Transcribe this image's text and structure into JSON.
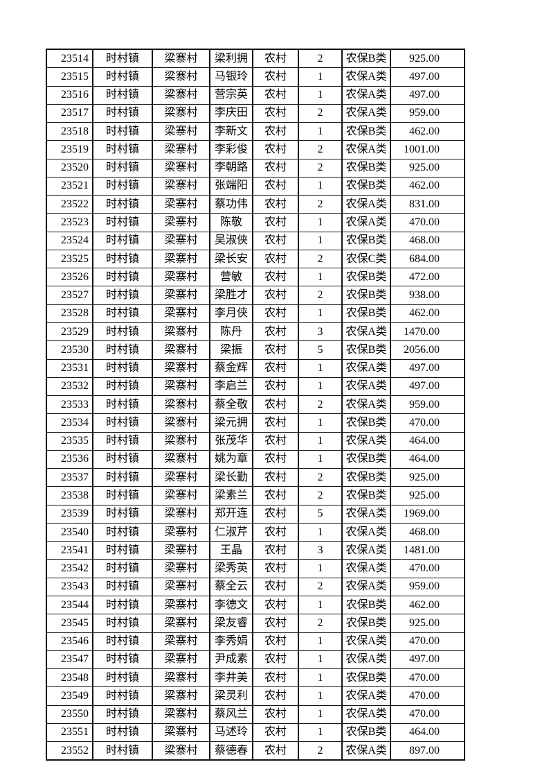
{
  "table": {
    "column_keys": [
      "id",
      "town",
      "village",
      "name",
      "residence",
      "count",
      "category",
      "amount"
    ],
    "rows": [
      [
        "23514",
        "时村镇",
        "梁寨村",
        "梁利拥",
        "农村",
        "2",
        "农保B类",
        "925.00"
      ],
      [
        "23515",
        "时村镇",
        "梁寨村",
        "马银玲",
        "农村",
        "1",
        "农保A类",
        "497.00"
      ],
      [
        "23516",
        "时村镇",
        "梁寨村",
        "营宗英",
        "农村",
        "1",
        "农保A类",
        "497.00"
      ],
      [
        "23517",
        "时村镇",
        "梁寨村",
        "李庆田",
        "农村",
        "2",
        "农保A类",
        "959.00"
      ],
      [
        "23518",
        "时村镇",
        "梁寨村",
        "李新文",
        "农村",
        "1",
        "农保B类",
        "462.00"
      ],
      [
        "23519",
        "时村镇",
        "梁寨村",
        "李彩俊",
        "农村",
        "2",
        "农保A类",
        "1001.00"
      ],
      [
        "23520",
        "时村镇",
        "梁寨村",
        "李朝路",
        "农村",
        "2",
        "农保B类",
        "925.00"
      ],
      [
        "23521",
        "时村镇",
        "梁寨村",
        "张端阳",
        "农村",
        "1",
        "农保B类",
        "462.00"
      ],
      [
        "23522",
        "时村镇",
        "梁寨村",
        "蔡功伟",
        "农村",
        "2",
        "农保A类",
        "831.00"
      ],
      [
        "23523",
        "时村镇",
        "梁寨村",
        "陈敬",
        "农村",
        "1",
        "农保A类",
        "470.00"
      ],
      [
        "23524",
        "时村镇",
        "梁寨村",
        "吴淑侠",
        "农村",
        "1",
        "农保B类",
        "468.00"
      ],
      [
        "23525",
        "时村镇",
        "梁寨村",
        "梁长安",
        "农村",
        "2",
        "农保C类",
        "684.00"
      ],
      [
        "23526",
        "时村镇",
        "梁寨村",
        "营敏",
        "农村",
        "1",
        "农保B类",
        "472.00"
      ],
      [
        "23527",
        "时村镇",
        "梁寨村",
        "梁胜才",
        "农村",
        "2",
        "农保B类",
        "938.00"
      ],
      [
        "23528",
        "时村镇",
        "梁寨村",
        "李月侠",
        "农村",
        "1",
        "农保B类",
        "462.00"
      ],
      [
        "23529",
        "时村镇",
        "梁寨村",
        "陈丹",
        "农村",
        "3",
        "农保A类",
        "1470.00"
      ],
      [
        "23530",
        "时村镇",
        "梁寨村",
        "梁振",
        "农村",
        "5",
        "农保B类",
        "2056.00"
      ],
      [
        "23531",
        "时村镇",
        "梁寨村",
        "蔡金辉",
        "农村",
        "1",
        "农保A类",
        "497.00"
      ],
      [
        "23532",
        "时村镇",
        "梁寨村",
        "李启兰",
        "农村",
        "1",
        "农保A类",
        "497.00"
      ],
      [
        "23533",
        "时村镇",
        "梁寨村",
        "蔡全敬",
        "农村",
        "2",
        "农保A类",
        "959.00"
      ],
      [
        "23534",
        "时村镇",
        "梁寨村",
        "梁元拥",
        "农村",
        "1",
        "农保B类",
        "470.00"
      ],
      [
        "23535",
        "时村镇",
        "梁寨村",
        "张茂华",
        "农村",
        "1",
        "农保A类",
        "464.00"
      ],
      [
        "23536",
        "时村镇",
        "梁寨村",
        "姚为章",
        "农村",
        "1",
        "农保B类",
        "464.00"
      ],
      [
        "23537",
        "时村镇",
        "梁寨村",
        "梁长勤",
        "农村",
        "2",
        "农保B类",
        "925.00"
      ],
      [
        "23538",
        "时村镇",
        "梁寨村",
        "梁素兰",
        "农村",
        "2",
        "农保B类",
        "925.00"
      ],
      [
        "23539",
        "时村镇",
        "梁寨村",
        "郑开连",
        "农村",
        "5",
        "农保A类",
        "1969.00"
      ],
      [
        "23540",
        "时村镇",
        "梁寨村",
        "仁淑芹",
        "农村",
        "1",
        "农保A类",
        "468.00"
      ],
      [
        "23541",
        "时村镇",
        "梁寨村",
        "王晶",
        "农村",
        "3",
        "农保A类",
        "1481.00"
      ],
      [
        "23542",
        "时村镇",
        "梁寨村",
        "梁秀英",
        "农村",
        "1",
        "农保A类",
        "470.00"
      ],
      [
        "23543",
        "时村镇",
        "梁寨村",
        "蔡全云",
        "农村",
        "2",
        "农保A类",
        "959.00"
      ],
      [
        "23544",
        "时村镇",
        "梁寨村",
        "李德文",
        "农村",
        "1",
        "农保B类",
        "462.00"
      ],
      [
        "23545",
        "时村镇",
        "梁寨村",
        "梁友睿",
        "农村",
        "2",
        "农保B类",
        "925.00"
      ],
      [
        "23546",
        "时村镇",
        "梁寨村",
        "李秀娟",
        "农村",
        "1",
        "农保A类",
        "470.00"
      ],
      [
        "23547",
        "时村镇",
        "梁寨村",
        "尹成素",
        "农村",
        "1",
        "农保A类",
        "497.00"
      ],
      [
        "23548",
        "时村镇",
        "梁寨村",
        "李井美",
        "农村",
        "1",
        "农保B类",
        "470.00"
      ],
      [
        "23549",
        "时村镇",
        "梁寨村",
        "梁灵利",
        "农村",
        "1",
        "农保A类",
        "470.00"
      ],
      [
        "23550",
        "时村镇",
        "梁寨村",
        "蔡风兰",
        "农村",
        "1",
        "农保A类",
        "470.00"
      ],
      [
        "23551",
        "时村镇",
        "梁寨村",
        "马述玲",
        "农村",
        "1",
        "农保B类",
        "464.00"
      ],
      [
        "23552",
        "时村镇",
        "梁寨村",
        "蔡德春",
        "农村",
        "2",
        "农保A类",
        "897.00"
      ]
    ]
  },
  "colors": {
    "border": "#141414",
    "text": "#000000",
    "page_background": "#ffffff"
  }
}
